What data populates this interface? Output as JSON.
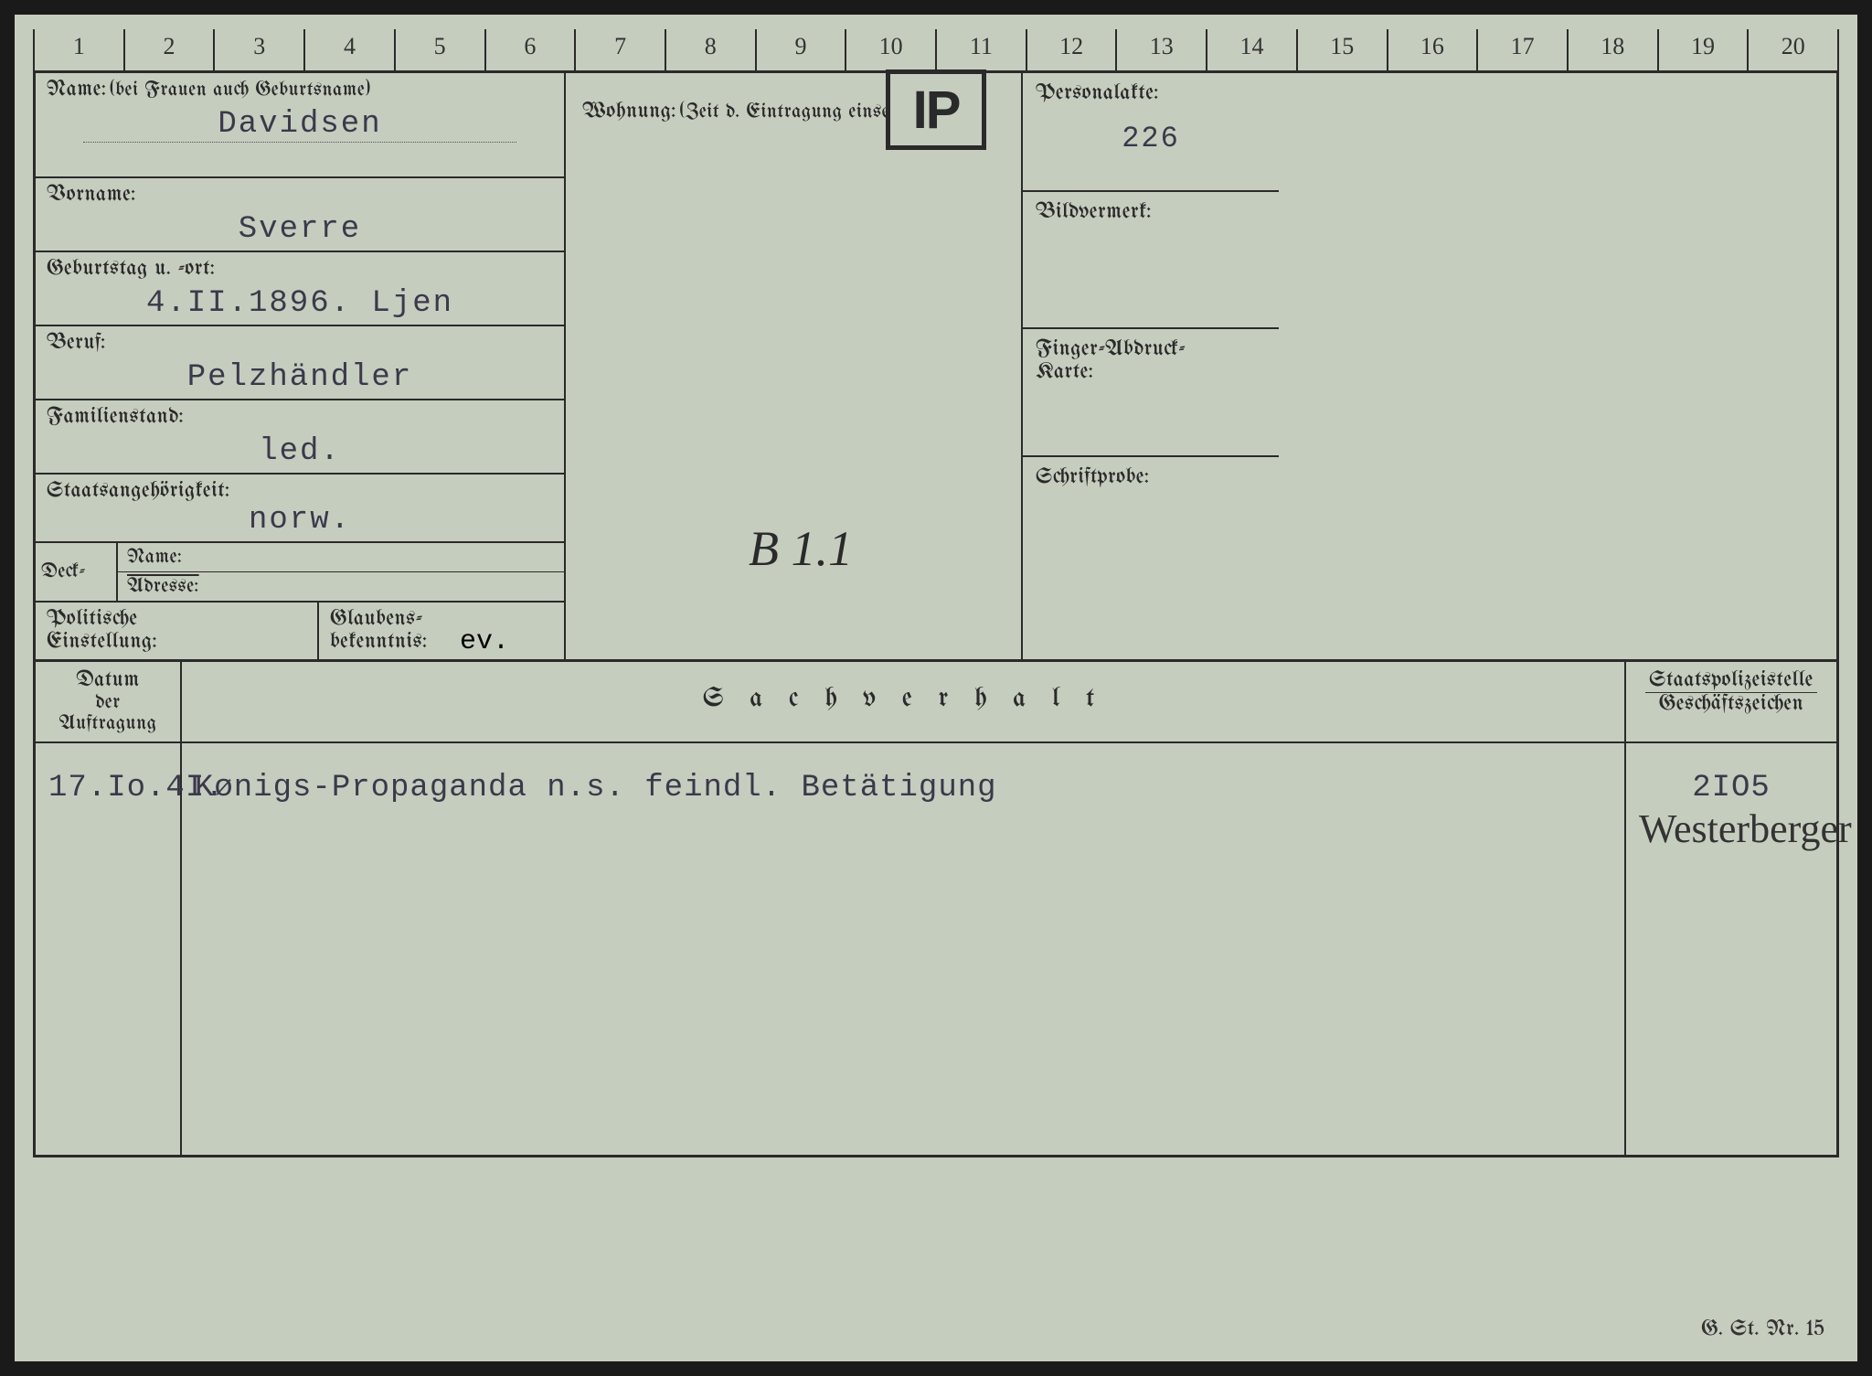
{
  "colors": {
    "card_bg": "#c5cdbf",
    "page_bg": "#1a1a1a",
    "line": "#2a2a2a",
    "typed_ink": "#3a3a4a",
    "print_ink": "#2a2a2a"
  },
  "ruler": {
    "ticks": [
      "1",
      "2",
      "3",
      "4",
      "5",
      "6",
      "7",
      "8",
      "9",
      "10",
      "11",
      "12",
      "13",
      "14",
      "15",
      "16",
      "17",
      "18",
      "19",
      "20"
    ]
  },
  "badge": "IP",
  "labels": {
    "name": "Name:",
    "name_hint": "(bei Frauen auch Geburtsname)",
    "vorname": "Vorname:",
    "geburt": "Geburtstag u. -ort:",
    "beruf": "Beruf:",
    "familien": "Familienstand:",
    "staat": "Staatsangehörigkeit:",
    "deck": "Deck-",
    "deck_name": "Name:",
    "deck_adresse": "Adresse:",
    "politische": "Politische",
    "einstellung": "Einstellung:",
    "glaubens": "Glaubens-",
    "bekenntnis": "bekenntnis:",
    "wohnung": "Wohnung:",
    "wohnung_hint": "(Zeit d. Eintragung einsetzen)",
    "personalakte": "Personalakte:",
    "bildvermerk": "Bildvermerk:",
    "finger": "Finger-Abdruck-",
    "karte": "Karte:",
    "schrift": "Schriftprobe:",
    "datum": "Datum",
    "auftragung": "der Auftragung",
    "sachverhalt": "S a c h v e r h a l t",
    "staatspolizei": "Staatspolizeistelle",
    "geschaft": "Geschäftszeichen"
  },
  "values": {
    "name": "Davidsen",
    "vorname": "Sverre",
    "geburt": "4.II.1896.   Ljen",
    "beruf": "Pelzhändler",
    "familien": "led.",
    "staat": "norw.",
    "glaubens": "ev.",
    "personalakte": "226",
    "handwritten_mid": "B 1.1",
    "sach_datum": "17.Io.4I.",
    "sach_text": "Kønigs-Propaganda n.s. feindl. Betätigung",
    "sach_code": "2IO5",
    "sach_sign": "Westerberger"
  },
  "footer": "G. St. Nr. 15"
}
